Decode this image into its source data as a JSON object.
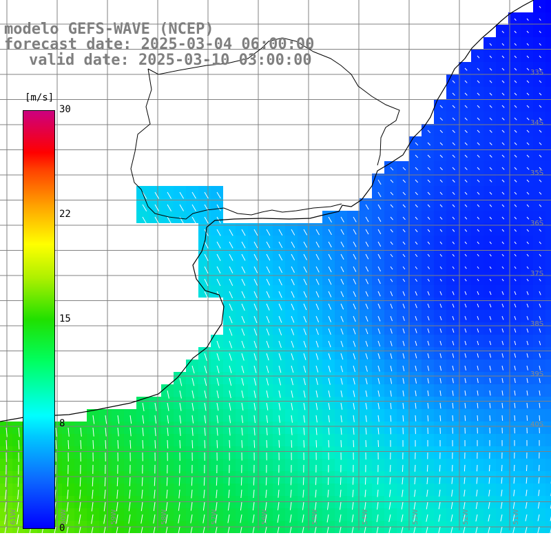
{
  "header": {
    "model": "modelo GEFS-WAVE (NCEP)",
    "forecast": "forecast date: 2025-03-04 06:00:00",
    "valid": "valid date: 2025-03-10 03:00:00"
  },
  "colorbar": {
    "unit": "[m/s]",
    "ticks": [
      "30",
      "22",
      "15",
      "8",
      "0"
    ],
    "range": [
      0,
      30
    ]
  },
  "lat_labels": [
    "33S",
    "34S",
    "35S",
    "36S",
    "37S",
    "38S",
    "39S",
    "40S"
  ],
  "lon_labels": [
    "61W",
    "60W",
    "59W",
    "58W",
    "57W",
    "56W",
    "55W",
    "54W",
    "53W",
    "52W",
    "51W"
  ],
  "colors": {
    "slow": "#0000ff",
    "mid": "#00c8ff",
    "fast": "#20e000",
    "grid": "#808080",
    "coast": "#000000",
    "text": "#7f7f7f"
  }
}
